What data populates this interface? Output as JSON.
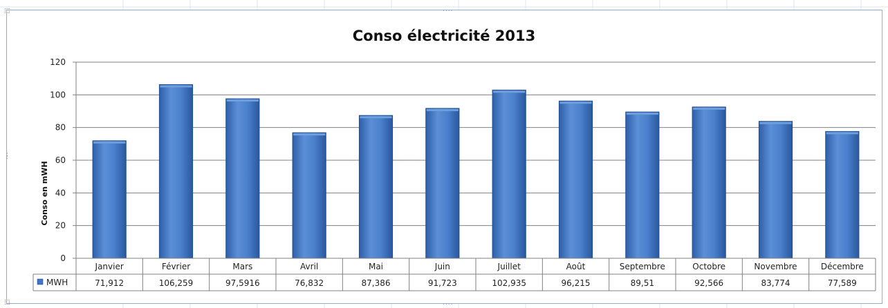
{
  "chart_data": {
    "type": "bar",
    "title": "Conso électricité 2013",
    "xlabel": "",
    "ylabel": "Conso en mWH",
    "ylim": [
      0,
      120
    ],
    "yticks": [
      0,
      20,
      40,
      60,
      80,
      100,
      120
    ],
    "grid": true,
    "legend": "data-table",
    "categories": [
      "Janvier",
      "Février",
      "Mars",
      "Avril",
      "Mai",
      "Juin",
      "Juillet",
      "Août",
      "Septembre",
      "Octobre",
      "Novembre",
      "Décembre"
    ],
    "series": [
      {
        "name": "MWH",
        "values": [
          71.912,
          106.259,
          97.5916,
          76.832,
          87.386,
          91.723,
          102.935,
          96.215,
          89.51,
          92.566,
          83.774,
          77.589
        ],
        "labels": [
          "71,912",
          "106,259",
          "97,5916",
          "76,832",
          "87,386",
          "91,723",
          "102,935",
          "96,215",
          "89,51",
          "92,566",
          "83,774",
          "77,589"
        ],
        "color": "#3f74c2"
      }
    ]
  },
  "colors": {
    "bar_face": "#4a82cf",
    "bar_edge": "#1f4f94",
    "bar_top": "#6e9edc",
    "grid": "#808080",
    "frame": "#8eaecf"
  }
}
